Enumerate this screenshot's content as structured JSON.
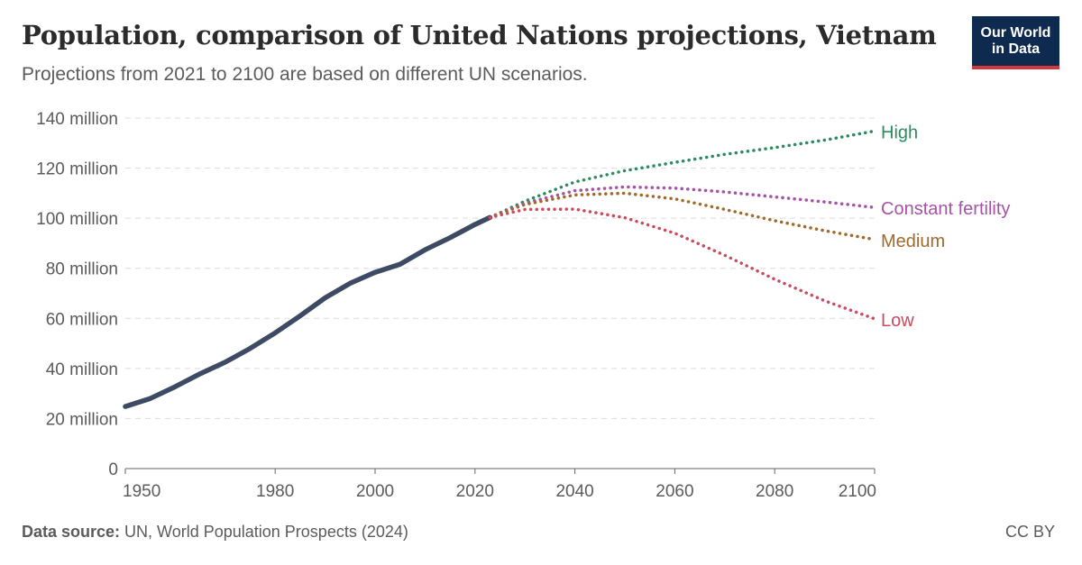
{
  "header": {
    "title": "Population, comparison of United Nations projections, Vietnam",
    "subtitle": "Projections from 2021 to 2100 are based on different UN scenarios.",
    "logo_line1": "Our World",
    "logo_line2": "in Data"
  },
  "footer": {
    "source_label": "Data source:",
    "source_text": " UN, World Population Prospects (2024)",
    "license": "CC BY"
  },
  "colors": {
    "estimates": "#3c4a64",
    "high": "#2e8a5f",
    "constant_fertility": "#a552a7",
    "medium": "#a06a2c",
    "low": "#cc4a5e",
    "grid": "#dcdcdc",
    "axis": "#666666"
  },
  "chart_data": {
    "type": "line",
    "title": "Population, comparison of United Nations projections, Vietnam",
    "xlim": [
      1950,
      2100
    ],
    "ylim": [
      0,
      140
    ],
    "x_ticks": [
      1950,
      1980,
      2000,
      2020,
      2040,
      2060,
      2080,
      2100
    ],
    "y_ticks": [
      0,
      20,
      40,
      60,
      80,
      100,
      120,
      140
    ],
    "y_tick_labels": [
      "0",
      "20 million",
      "40 million",
      "60 million",
      "80 million",
      "100 million",
      "120 million",
      "140 million"
    ],
    "series": [
      {
        "key": "estimates",
        "style": "solid",
        "color": "#3c4a64",
        "points": [
          [
            1950,
            24.8
          ],
          [
            1955,
            28.0
          ],
          [
            1960,
            32.7
          ],
          [
            1965,
            37.9
          ],
          [
            1970,
            42.5
          ],
          [
            1975,
            48.0
          ],
          [
            1980,
            54.2
          ],
          [
            1985,
            61.0
          ],
          [
            1990,
            68.2
          ],
          [
            1995,
            74.0
          ],
          [
            2000,
            78.4
          ],
          [
            2005,
            81.6
          ],
          [
            2010,
            87.4
          ],
          [
            2015,
            92.2
          ],
          [
            2020,
            97.5
          ],
          [
            2023,
            100.3
          ]
        ]
      },
      {
        "key": "high",
        "name": "High",
        "style": "dotted",
        "color": "#2e8a5f",
        "points": [
          [
            2023,
            100.3
          ],
          [
            2030,
            106.8
          ],
          [
            2040,
            114.5
          ],
          [
            2050,
            119.0
          ],
          [
            2060,
            122.3
          ],
          [
            2070,
            125.5
          ],
          [
            2080,
            128.2
          ],
          [
            2090,
            131.2
          ],
          [
            2100,
            134.8
          ]
        ]
      },
      {
        "key": "constant_fertility",
        "name": "Constant fertility",
        "style": "dotted",
        "color": "#a552a7",
        "points": [
          [
            2023,
            100.3
          ],
          [
            2030,
            106.0
          ],
          [
            2040,
            111.0
          ],
          [
            2050,
            112.5
          ],
          [
            2060,
            112.0
          ],
          [
            2070,
            110.5
          ],
          [
            2080,
            108.5
          ],
          [
            2090,
            106.5
          ],
          [
            2100,
            104.3
          ]
        ]
      },
      {
        "key": "medium",
        "name": "Medium",
        "style": "dotted",
        "color": "#a06a2c",
        "points": [
          [
            2023,
            100.3
          ],
          [
            2030,
            105.5
          ],
          [
            2040,
            109.3
          ],
          [
            2050,
            110.0
          ],
          [
            2060,
            107.7
          ],
          [
            2070,
            103.5
          ],
          [
            2080,
            99.0
          ],
          [
            2090,
            95.0
          ],
          [
            2100,
            91.5
          ]
        ]
      },
      {
        "key": "low",
        "name": "Low",
        "style": "dotted",
        "color": "#cc4a5e",
        "points": [
          [
            2023,
            100.3
          ],
          [
            2030,
            103.5
          ],
          [
            2040,
            103.6
          ],
          [
            2050,
            100.2
          ],
          [
            2060,
            94.0
          ],
          [
            2070,
            85.2
          ],
          [
            2080,
            75.6
          ],
          [
            2090,
            67.0
          ],
          [
            2100,
            59.8
          ]
        ]
      }
    ]
  }
}
